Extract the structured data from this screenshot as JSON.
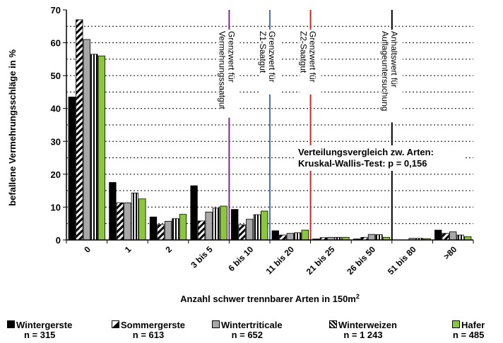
{
  "chart_data": {
    "type": "bar",
    "ylabel": "befallene Vermehrungsschläge in %",
    "xlabel": "Anzahl schwer trennbarer Arten in 150m",
    "xlabel_superscript": "2",
    "ylim": [
      0,
      70
    ],
    "yticks": [
      "0",
      "10",
      "20",
      "30",
      "40",
      "50",
      "60",
      "70"
    ],
    "categories": [
      "0",
      "1",
      "2",
      "3 bis 5",
      "6 bis 10",
      "11 bis 20",
      "21 bis 25",
      "26 bis 50",
      "51 bis 80",
      ">80"
    ],
    "series": [
      {
        "name": "Wintergerste",
        "n": "n = 315",
        "values": [
          43.5,
          17.5,
          7,
          16.5,
          9.3,
          2.8,
          0.3,
          0.3,
          0,
          3
        ]
      },
      {
        "name": "Sommergerste",
        "n": "n = 613",
        "values": [
          67,
          11.3,
          4.7,
          5.8,
          4.6,
          1.5,
          0.7,
          0.8,
          0,
          2
        ]
      },
      {
        "name": "Wintertriticale",
        "n": "n = 652",
        "values": [
          61,
          11.3,
          5.7,
          8.5,
          6.3,
          2,
          0.8,
          1.7,
          0.5,
          2.5
        ]
      },
      {
        "name": "Winterweizen",
        "n": "n = 1 243",
        "values": [
          56.5,
          14.3,
          6.5,
          9.7,
          7.7,
          2.2,
          0.8,
          1.6,
          0.5,
          1.5
        ]
      },
      {
        "name": "Hafer",
        "n": "n = 485",
        "values": [
          56,
          12.5,
          7.8,
          10.3,
          8.8,
          3,
          0.8,
          0.8,
          0.4,
          1
        ]
      }
    ],
    "threshold_lines": [
      {
        "label": "Grenzwert für Vermehrungssaatgut",
        "lines": [
          "Grenzwert für",
          "Vermehrungssaatgut"
        ],
        "between": [
          "3 bis 5",
          "6 bis 10"
        ],
        "color": "#7f2a8e"
      },
      {
        "label": "Grenzwert für Z1-Saatgut",
        "lines": [
          "Grenzwert für",
          "Z1-Saatgut"
        ],
        "between": [
          "6 bis 10",
          "11 bis 20"
        ],
        "color": "#4a6fd1"
      },
      {
        "label": "Grenzwert für Z2-Saatgut",
        "lines": [
          "Grenzwert für",
          "Z2-Saatgut"
        ],
        "between": [
          "11 bis 20",
          "21 bis 25"
        ],
        "color": "#e02020"
      },
      {
        "label": "Anhaltswert für Auflageuntersuchung",
        "lines": [
          "Anhaltswert für",
          "Auflageuntersuchung"
        ],
        "between": [
          "26 bis 50",
          "51 bis 80"
        ],
        "color": "#000000"
      }
    ],
    "annotation": [
      "Verteilungsvergleich zw. Arten:",
      "Kruskal-Wallis-Test: p = 0,156"
    ],
    "grid": "dotted horizontal",
    "legend_position": "bottom"
  }
}
